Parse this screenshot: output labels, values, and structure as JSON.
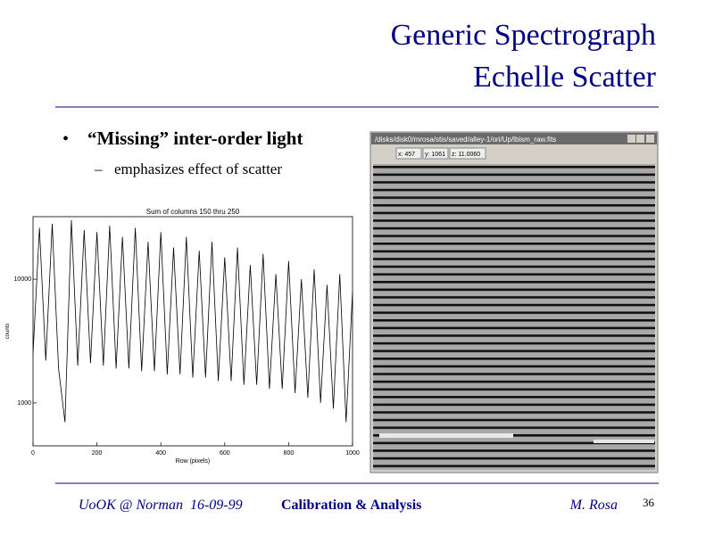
{
  "header": {
    "title": [
      "Generic Spectrograph",
      "Echelle Scatter"
    ]
  },
  "bullets": [
    {
      "text": "“Missing” inter-order light",
      "sub": [
        "emphasizes effect of scatter"
      ]
    }
  ],
  "plot": {
    "type": "line",
    "title": "Sum of columns 150 thru 250",
    "x_label": "Row (pixels)",
    "y_label": "counts",
    "log_y": true,
    "color": "#000000",
    "x": [
      0,
      20,
      40,
      60,
      80,
      100,
      120,
      140,
      160,
      180,
      200,
      220,
      240,
      260,
      280,
      300,
      320,
      340,
      360,
      380,
      400,
      420,
      440,
      460,
      480,
      500,
      520,
      540,
      560,
      580,
      600,
      620,
      640,
      660,
      680,
      700,
      720,
      740,
      760,
      780,
      800,
      820,
      840,
      860,
      880,
      900,
      920,
      940,
      960,
      980,
      1000
    ],
    "values": [
      2500,
      26000,
      2200,
      28000,
      1900,
      700,
      30000,
      2000,
      25000,
      2100,
      24000,
      2000,
      27000,
      1900,
      22000,
      1900,
      26000,
      1800,
      20000,
      1800,
      24000,
      1700,
      18000,
      1700,
      22000,
      1600,
      17000,
      1600,
      20000,
      1500,
      15000,
      1500,
      18000,
      1400,
      13000,
      1400,
      16000,
      1300,
      11000,
      1300,
      14000,
      1200,
      10000,
      1100,
      12000,
      1000,
      9000,
      900,
      11000,
      700,
      8000
    ],
    "xlim": [
      0,
      1000
    ],
    "xticks": [
      0,
      200,
      400,
      600,
      800,
      1000
    ],
    "ylim": [
      450,
      32000
    ],
    "yticks": [
      1000,
      10000
    ]
  },
  "image_window": {
    "title": "/disks/disk0/mrosa/stis/saved/alley-1/ori/Up/lbism_raw.fits",
    "fields": [
      "x: 457",
      "y: 1061",
      "z: 11.0060"
    ]
  },
  "footer": {
    "left": "UoOK @ Norman  16-09-99",
    "center": "Calibration & Analysis",
    "right": "M. Rosa",
    "page": "36"
  }
}
